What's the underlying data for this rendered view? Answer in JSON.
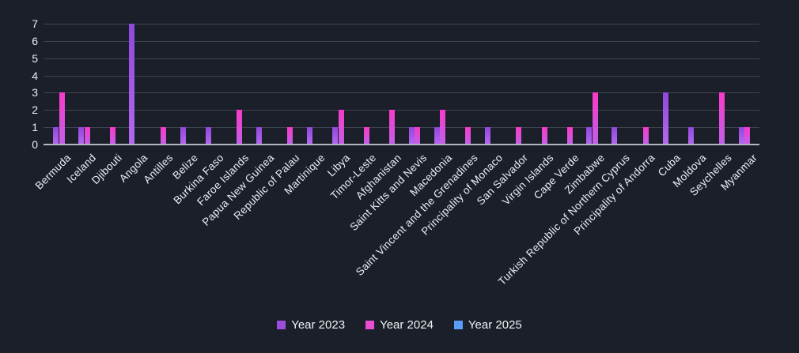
{
  "chart_data": {
    "type": "bar",
    "title": "",
    "xlabel": "",
    "ylabel": "",
    "ylim": [
      0,
      7
    ],
    "yticks": [
      0,
      1,
      2,
      3,
      4,
      5,
      6,
      7
    ],
    "grid": true,
    "legend_position": "bottom",
    "categories": [
      "Bermuda",
      "Iceland",
      "Djibouti",
      "Angola",
      "Antilles",
      "Belize",
      "Burkina Faso",
      "Faroe Islands",
      "Papua New Guinea",
      "Republic of Palau",
      "Martinique",
      "Libya",
      "Timor-Leste",
      "Afghanistan",
      "Saint Kitts and Nevis",
      "Macedonia",
      "Saint Vincent and the Grenadines",
      "Principality of Monaco",
      "San Salvador",
      "Virgin Islands",
      "Cape Verde",
      "Zimbabwe",
      "Turkish Republic of Northern Cyprus",
      "Principality of Andorra",
      "Cuba",
      "Moldova",
      "Seychelles",
      "Myanmar"
    ],
    "series": [
      {
        "name": "Year 2023",
        "color": "#9d4ddb",
        "gradient": [
          "#8f49dd",
          "#b567f0"
        ],
        "values": [
          1,
          1,
          0,
          7,
          0,
          1,
          1,
          0,
          1,
          0,
          1,
          1,
          0,
          0,
          1,
          1,
          0,
          1,
          0,
          0,
          0,
          1,
          1,
          0,
          3,
          1,
          0,
          1
        ]
      },
      {
        "name": "Year 2024",
        "color": "#ea4ed2",
        "gradient": [
          "#f93ac7",
          "#c25fe9"
        ],
        "values": [
          3,
          1,
          1,
          0,
          1,
          0,
          0,
          2,
          0,
          1,
          0,
          2,
          1,
          2,
          1,
          2,
          1,
          0,
          1,
          1,
          1,
          3,
          0,
          1,
          0,
          0,
          3,
          1
        ]
      },
      {
        "name": "Year 2025",
        "color": "#5b9cf5",
        "gradient": [
          "#5b9cf5",
          "#86b6f8"
        ],
        "values": [
          0,
          0,
          0,
          0,
          0,
          0,
          0,
          0,
          0,
          0,
          0,
          0,
          0,
          0,
          0,
          0,
          0,
          0,
          0,
          0,
          0,
          0,
          0,
          0,
          0,
          0,
          0,
          0
        ]
      }
    ]
  },
  "colors": {
    "background": "#1b1f29",
    "gridline": "#3e4450",
    "axis_line": "#b4b7bd",
    "text": "#edeef2"
  }
}
